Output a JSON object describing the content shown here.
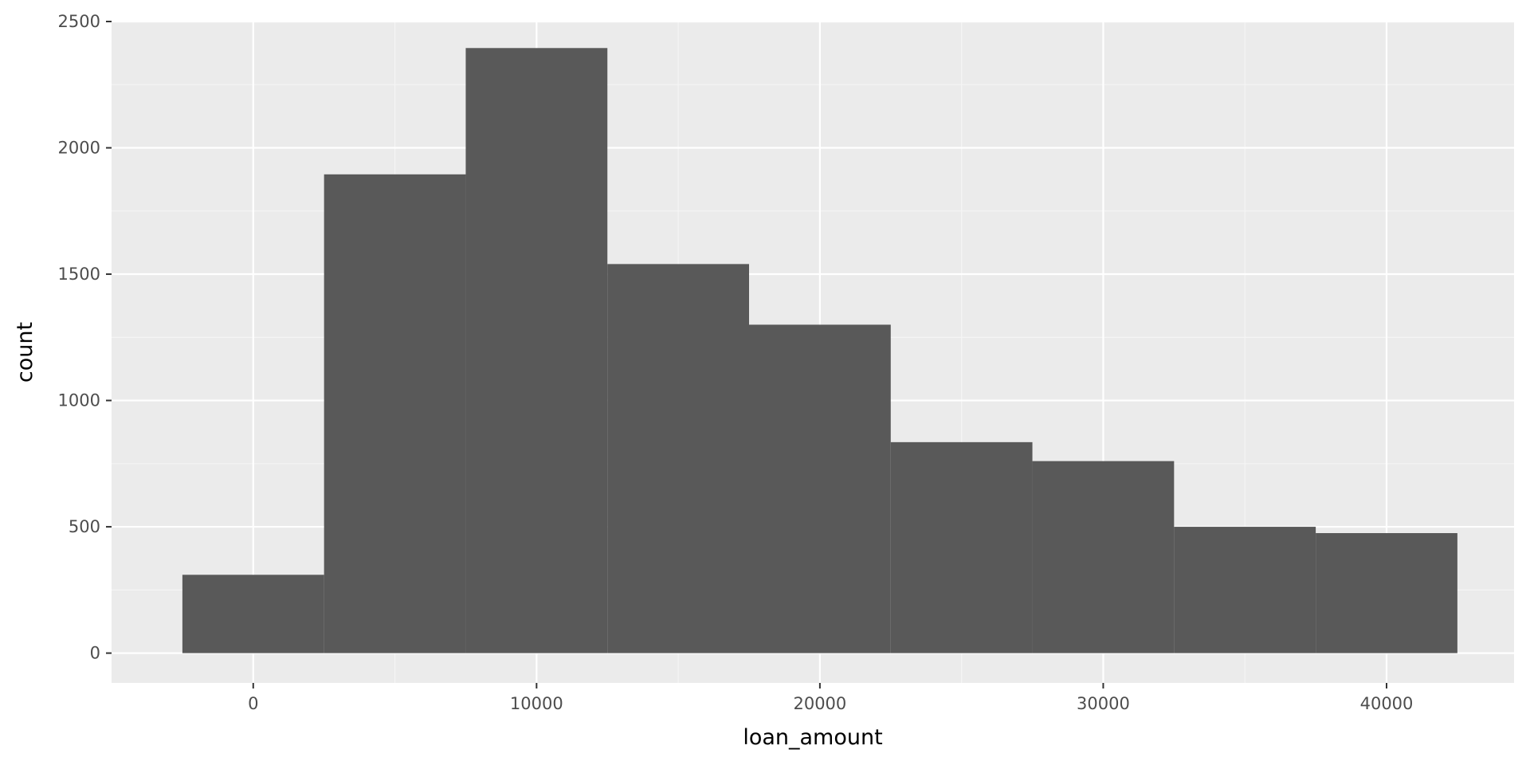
{
  "chart_data": {
    "type": "bar",
    "subtype": "histogram",
    "xlabel": "loan_amount",
    "ylabel": "count",
    "xlim": [
      -5000,
      44500
    ],
    "ylim": [
      -118,
      2500
    ],
    "x_ticks": [
      0,
      10000,
      20000,
      30000,
      40000
    ],
    "y_ticks": [
      0,
      500,
      1000,
      1500,
      2000,
      2500
    ],
    "bins": [
      {
        "x_start": -2500,
        "x_end": 2500,
        "count": 310
      },
      {
        "x_start": 2500,
        "x_end": 7500,
        "count": 1895
      },
      {
        "x_start": 7500,
        "x_end": 12500,
        "count": 2395
      },
      {
        "x_start": 12500,
        "x_end": 17500,
        "count": 1540
      },
      {
        "x_start": 17500,
        "x_end": 22500,
        "count": 1300
      },
      {
        "x_start": 22500,
        "x_end": 27500,
        "count": 835
      },
      {
        "x_start": 27500,
        "x_end": 32500,
        "count": 760
      },
      {
        "x_start": 32500,
        "x_end": 37500,
        "count": 500
      },
      {
        "x_start": 37500,
        "x_end": 42500,
        "count": 475
      }
    ],
    "grid": true,
    "colors": {
      "panel_background": "#ebebeb",
      "grid_major": "#ffffff",
      "grid_minor": "#f5f5f5",
      "bar_fill": "#595959",
      "tick_text": "#4d4d4d",
      "axis_title": "#000000"
    }
  }
}
